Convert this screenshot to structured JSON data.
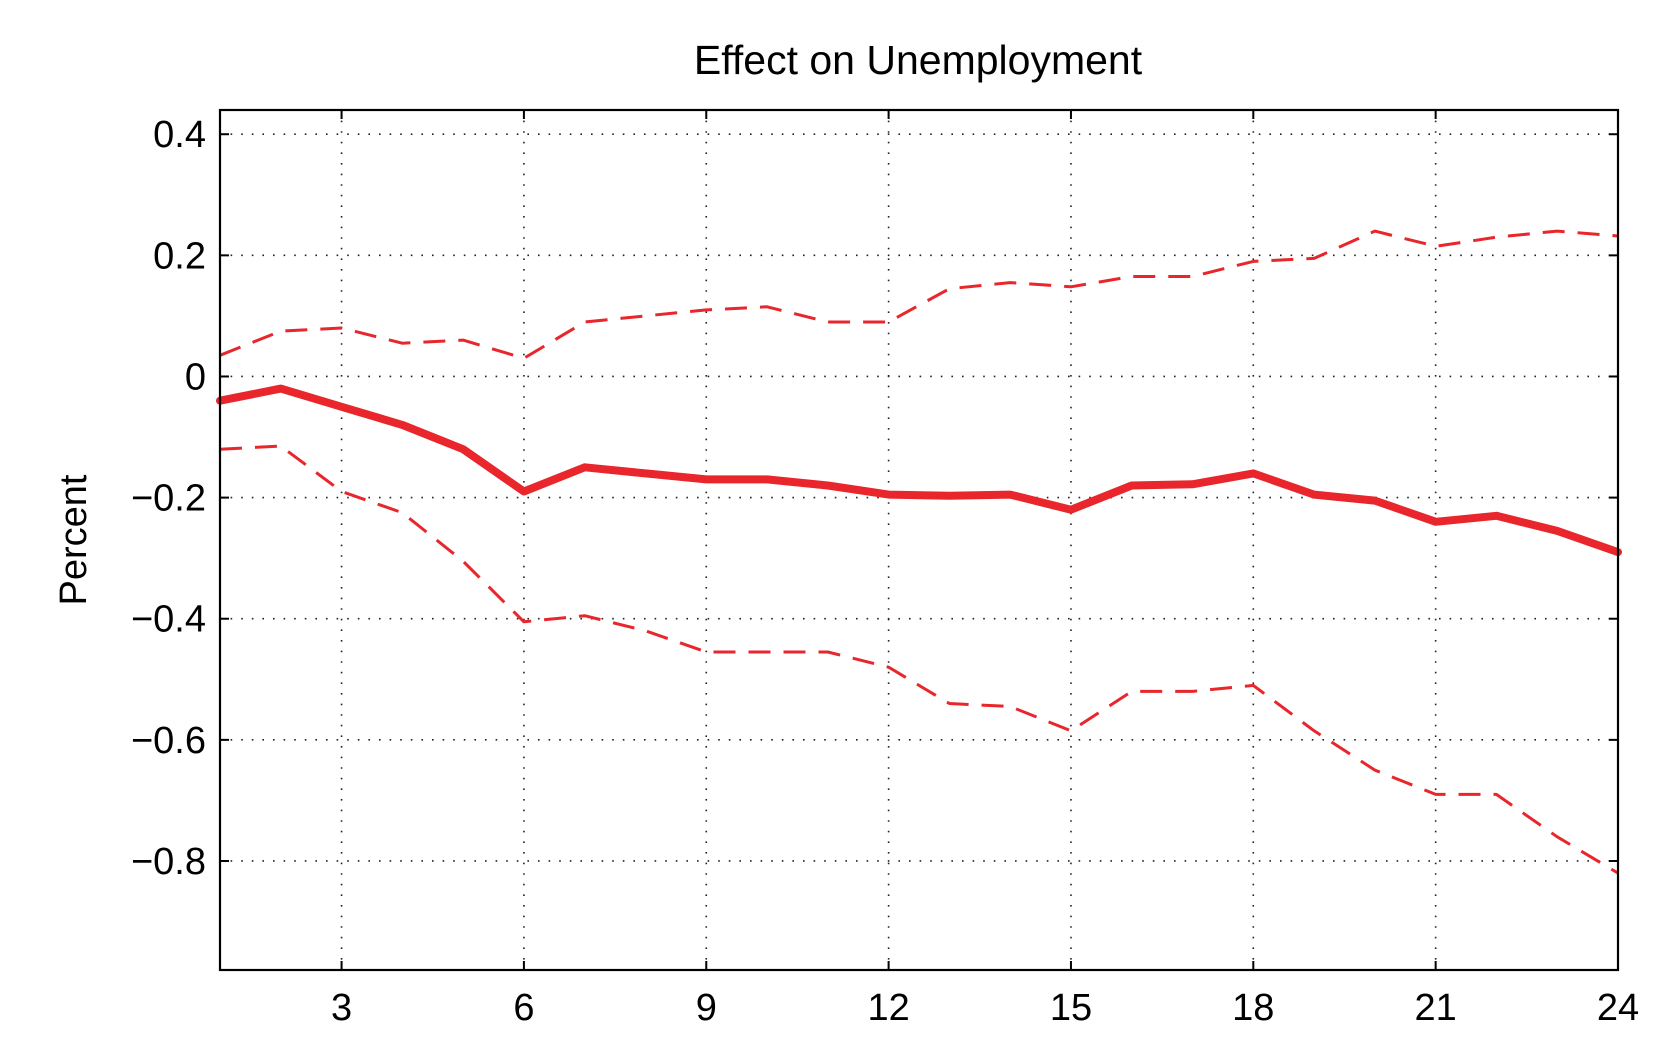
{
  "chart_data": {
    "type": "line",
    "title": "Effect on Unemployment",
    "xlabel": "",
    "ylabel": "Percent",
    "xlim": [
      1,
      24
    ],
    "ylim": [
      -0.98,
      0.44
    ],
    "xticks": [
      3,
      6,
      9,
      12,
      15,
      18,
      21,
      24
    ],
    "xtick_labels": [
      "3",
      "6",
      "9",
      "12",
      "15",
      "18",
      "21",
      "24"
    ],
    "yticks": [
      0.4,
      0.2,
      0,
      -0.2,
      -0.4,
      -0.6,
      -0.8
    ],
    "ytick_labels": [
      "0.4",
      "0.2",
      "0",
      "−0.2",
      "−0.4",
      "−0.6",
      "−0.8"
    ],
    "grid": true,
    "grid_style": "dotted",
    "line_color": "#e8262b",
    "x": [
      1,
      2,
      3,
      4,
      5,
      6,
      7,
      8,
      9,
      10,
      11,
      12,
      13,
      14,
      15,
      16,
      17,
      18,
      19,
      20,
      21,
      22,
      23,
      24
    ],
    "series": [
      {
        "role": "estimate",
        "style": "solid",
        "values": [
          -0.04,
          -0.02,
          -0.05,
          -0.08,
          -0.12,
          -0.19,
          -0.15,
          -0.16,
          -0.17,
          -0.17,
          -0.18,
          -0.195,
          -0.197,
          -0.195,
          -0.22,
          -0.18,
          -0.178,
          -0.16,
          -0.195,
          -0.205,
          -0.24,
          -0.23,
          -0.255,
          -0.29
        ]
      },
      {
        "role": "upper-band",
        "style": "dashed",
        "values": [
          0.035,
          0.075,
          0.08,
          0.055,
          0.06,
          0.03,
          0.09,
          0.1,
          0.11,
          0.115,
          0.09,
          0.09,
          0.145,
          0.155,
          0.148,
          0.165,
          0.165,
          0.19,
          0.195,
          0.24,
          0.215,
          0.23,
          0.24,
          0.232
        ]
      },
      {
        "role": "lower-band",
        "style": "dashed",
        "values": [
          -0.12,
          -0.115,
          -0.19,
          -0.225,
          -0.305,
          -0.405,
          -0.395,
          -0.42,
          -0.455,
          -0.455,
          -0.455,
          -0.48,
          -0.54,
          -0.545,
          -0.585,
          -0.52,
          -0.52,
          -0.51,
          -0.585,
          -0.65,
          -0.69,
          -0.69,
          -0.76,
          -0.82
        ]
      }
    ]
  }
}
